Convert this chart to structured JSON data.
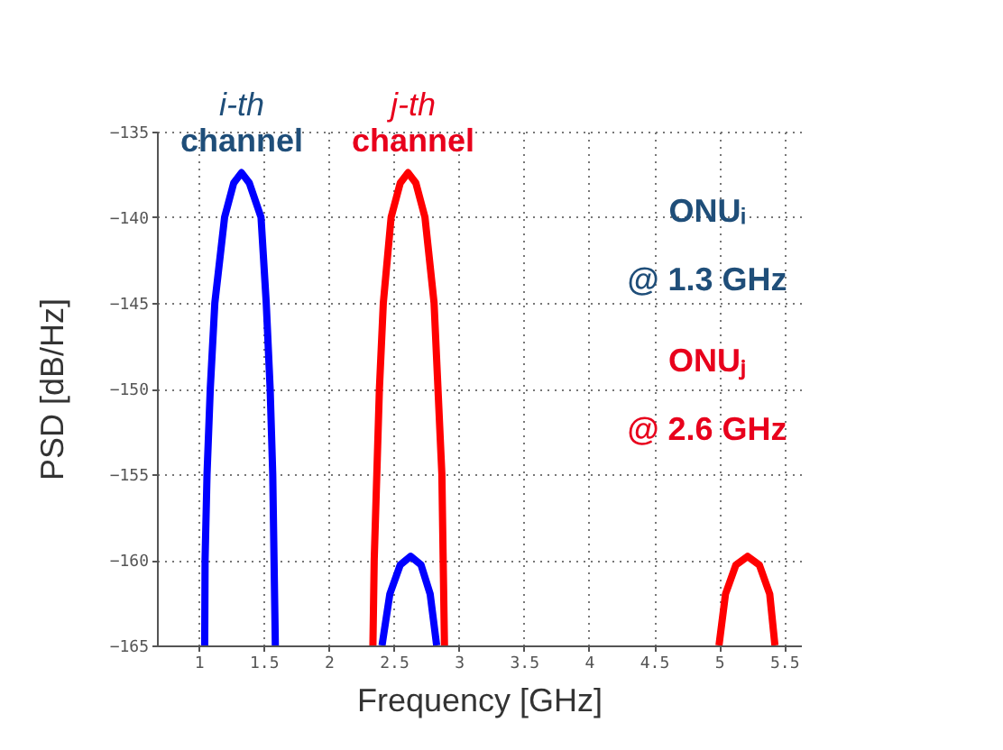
{
  "chart_data": {
    "type": "line",
    "xlabel": "Frequency [GHz]",
    "ylabel": "PSD [dB/Hz]",
    "xlim": [
      0.68,
      5.63
    ],
    "ylim": [
      -165,
      -135
    ],
    "xticks": [
      1,
      1.5,
      2,
      2.5,
      3,
      3.5,
      4,
      4.5,
      5,
      5.5
    ],
    "yticks": [
      -165,
      -160,
      -155,
      -150,
      -145,
      -140,
      -135
    ],
    "grid": true,
    "line_style": "solid",
    "marker": "none",
    "series": [
      {
        "color": "#0000ff",
        "x": [
          1.047,
          1.05,
          1.065,
          1.09,
          1.125,
          1.2,
          1.27,
          1.33,
          1.39,
          1.48,
          1.52,
          1.55,
          1.57,
          1.58,
          1.59,
          null,
          2.41,
          2.47,
          2.55,
          2.63,
          2.71,
          2.78,
          2.83
        ],
        "values": [
          -165,
          -160,
          -155,
          -150,
          -145,
          -140,
          -138,
          -137.4,
          -138,
          -140,
          -145,
          -150,
          -155,
          -160,
          -165,
          null,
          -165,
          -162,
          -160.3,
          -159.8,
          -160.3,
          -162,
          -165
        ]
      },
      {
        "color": "#ff0000",
        "x": [
          2.34,
          2.35,
          2.37,
          2.39,
          2.42,
          2.48,
          2.55,
          2.61,
          2.67,
          2.74,
          2.81,
          2.84,
          2.87,
          2.88,
          2.89,
          null,
          5.0,
          5.05,
          5.13,
          5.22,
          5.31,
          5.39,
          5.43
        ],
        "values": [
          -165,
          -160,
          -155,
          -150,
          -145,
          -140,
          -138,
          -137.4,
          -138,
          -140,
          -145,
          -150,
          -155,
          -160,
          -165,
          null,
          -165,
          -162,
          -160.3,
          -159.8,
          -160.3,
          -162,
          -165
        ]
      }
    ],
    "annotations": [
      "i-th",
      "channel",
      "j-th",
      "channel",
      "ONUᵢ",
      "@ 1.3 GHz",
      "ONUⱼ",
      "@ 2.6 GHz"
    ]
  }
}
